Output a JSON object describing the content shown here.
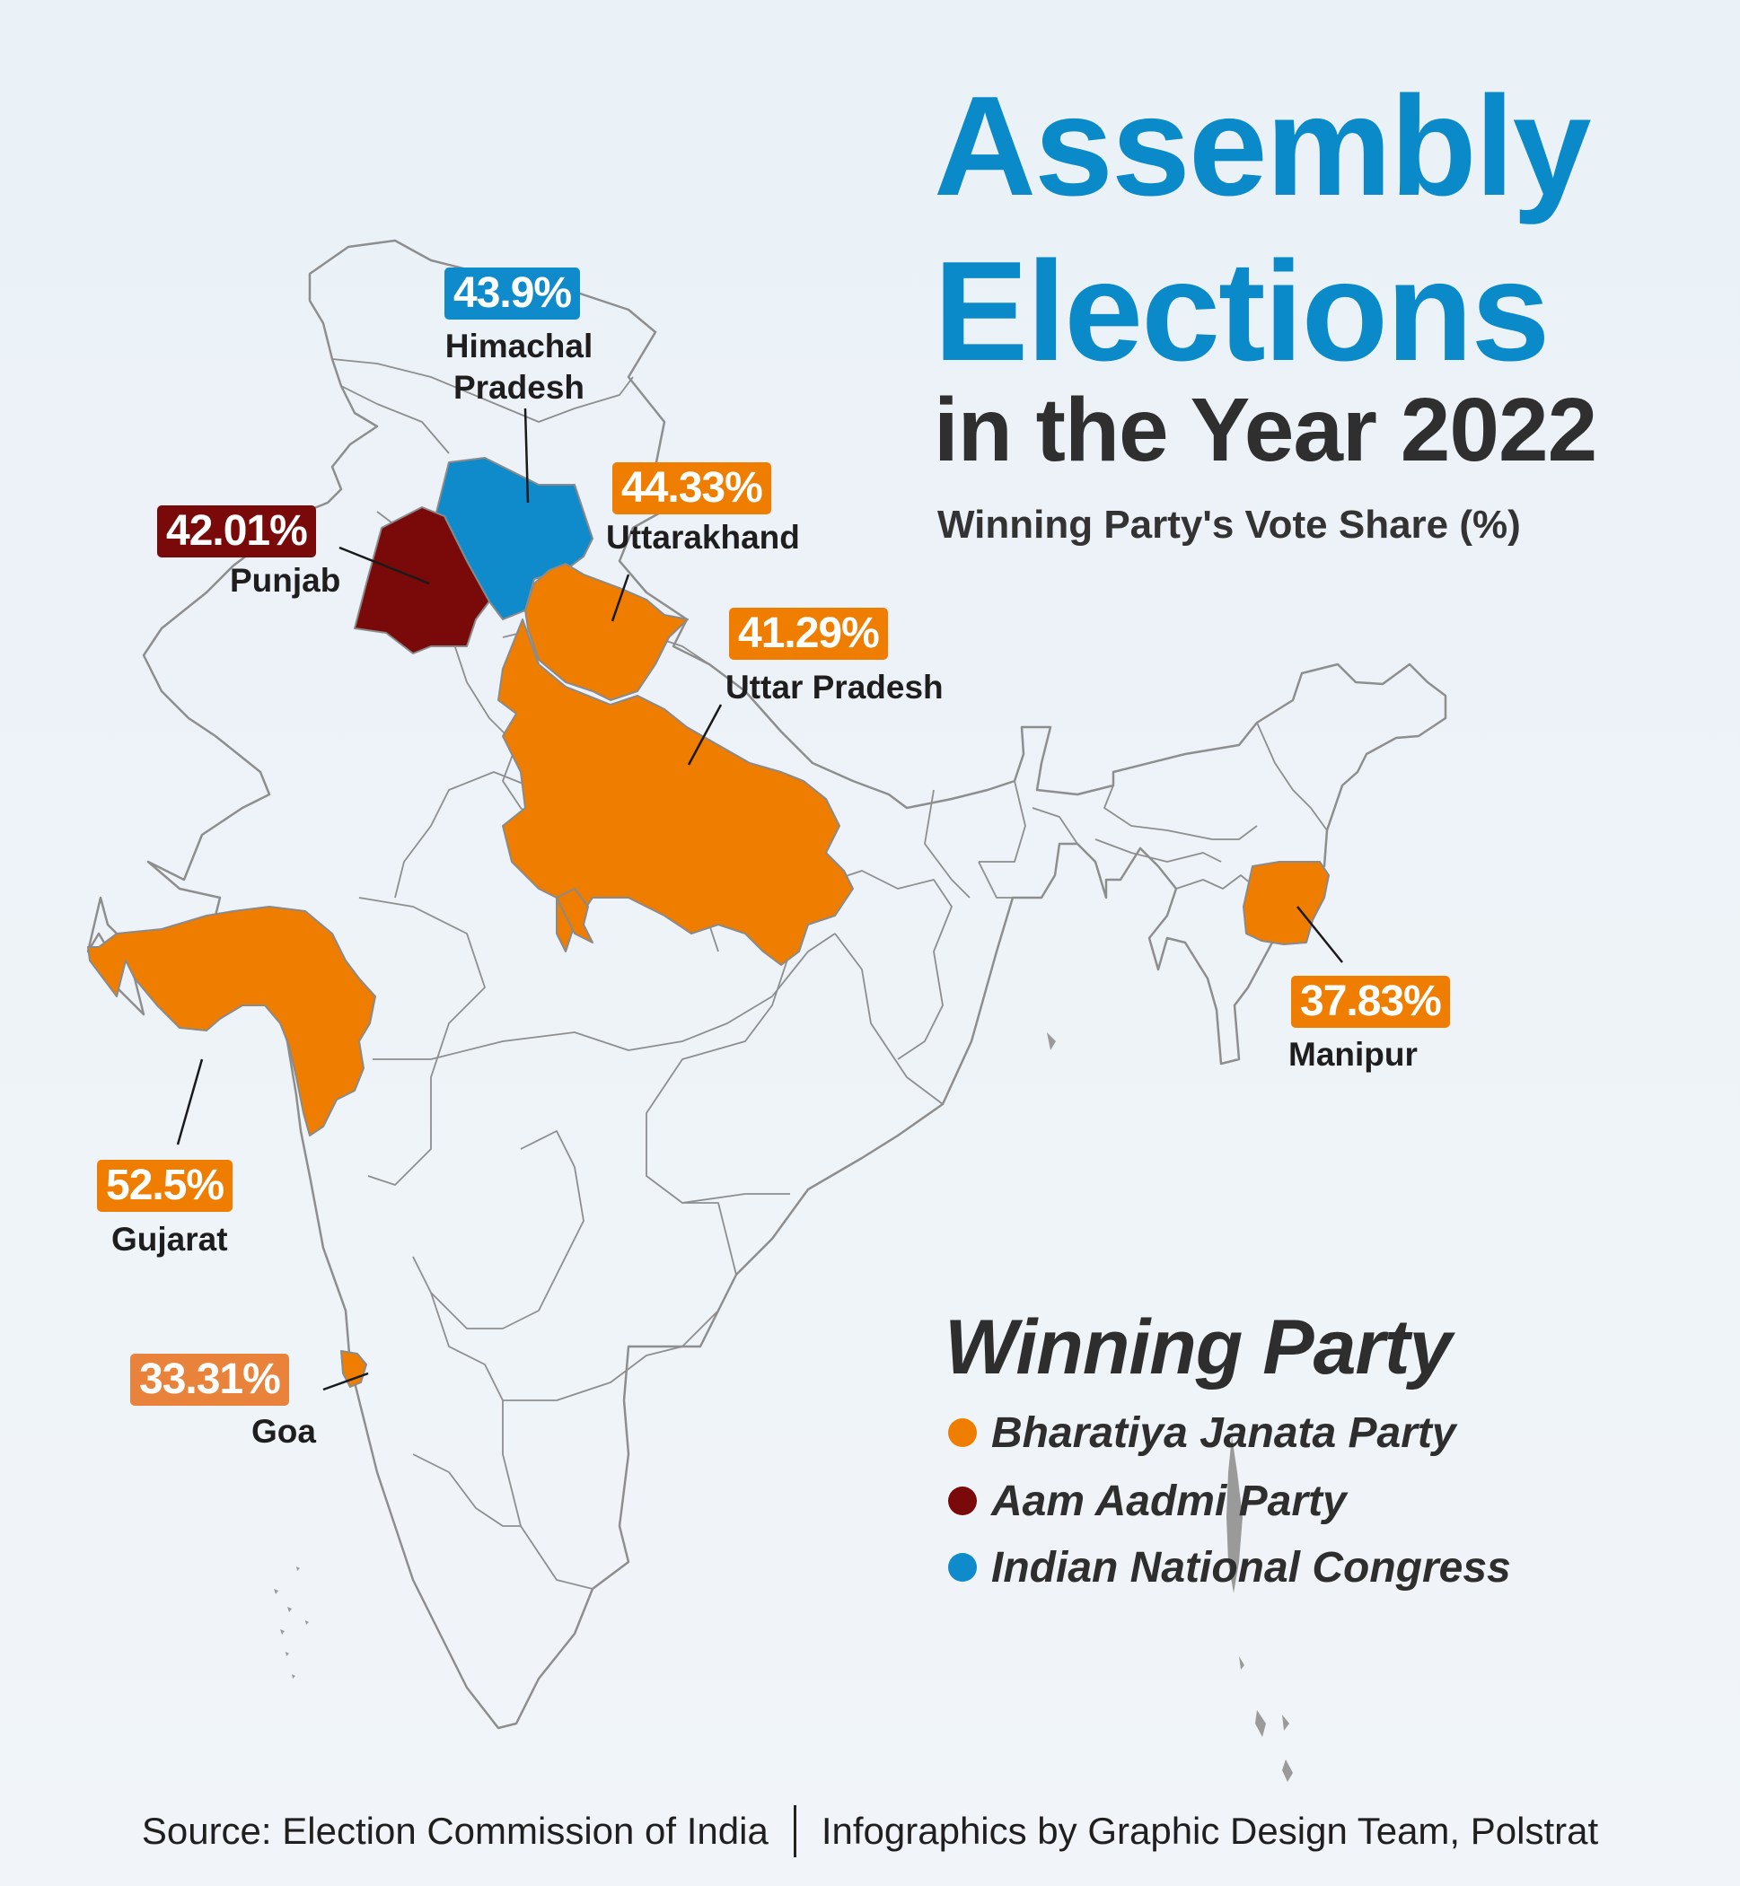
{
  "title": {
    "line1": "Assembly",
    "line2": "Elections",
    "line3": "in the Year 2022"
  },
  "subtitle": "Winning Party's Vote Share (%)",
  "colors": {
    "bjp": "#ef7d00",
    "aap": "#7a0a0a",
    "inc": "#0f8bcc",
    "goa_box": "#e9823a",
    "title_blue": "#0a8ac8",
    "title_dark": "#2f2f2f",
    "base_fill": "#eef3f8",
    "outline": "#8e8e8e"
  },
  "states": [
    {
      "key": "himachal",
      "name_lines": [
        "Himachal",
        "Pradesh"
      ],
      "vote_share": "43.9%",
      "party": "inc"
    },
    {
      "key": "uttarakhand",
      "name_lines": [
        "Uttarakhand"
      ],
      "vote_share": "44.33%",
      "party": "bjp"
    },
    {
      "key": "punjab",
      "name_lines": [
        "Punjab"
      ],
      "vote_share": "42.01%",
      "party": "aap"
    },
    {
      "key": "uttar-pradesh",
      "name_lines": [
        "Uttar Pradesh"
      ],
      "vote_share": "41.29%",
      "party": "bjp"
    },
    {
      "key": "manipur",
      "name_lines": [
        "Manipur"
      ],
      "vote_share": "37.83%",
      "party": "bjp"
    },
    {
      "key": "gujarat",
      "name_lines": [
        "Gujarat"
      ],
      "vote_share": "52.5%",
      "party": "bjp"
    },
    {
      "key": "goa",
      "name_lines": [
        "Goa"
      ],
      "vote_share": "33.31%",
      "party": "bjp"
    }
  ],
  "legend": {
    "title": "Winning Party",
    "items": [
      {
        "label": "Bharatiya Janata Party",
        "party": "bjp"
      },
      {
        "label": "Aam Aadmi Party",
        "party": "aap"
      },
      {
        "label": "Indian National Congress",
        "party": "inc"
      }
    ]
  },
  "footer": {
    "source": "Source: Election Commission of India",
    "credit": "Infographics by Graphic Design Team, Polstrat"
  }
}
